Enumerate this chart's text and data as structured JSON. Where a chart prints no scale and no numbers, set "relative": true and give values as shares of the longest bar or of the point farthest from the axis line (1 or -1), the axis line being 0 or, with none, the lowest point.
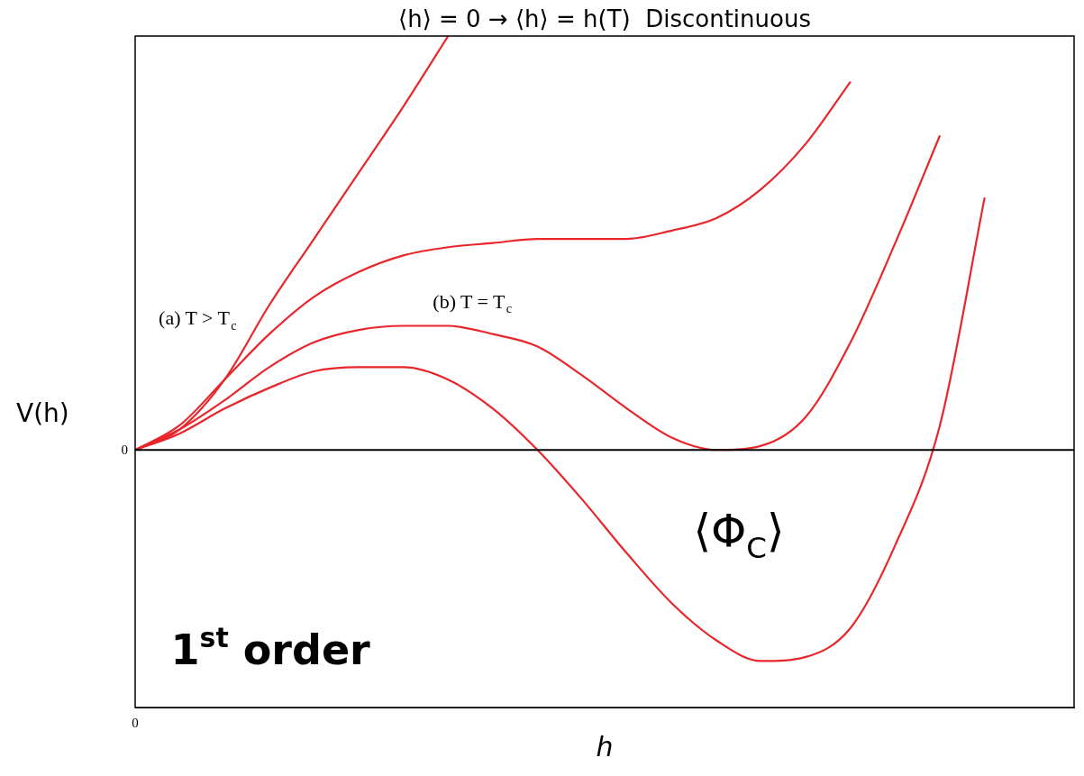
{
  "chart_data": {
    "type": "line",
    "title": "⟨h⟩ = 0 → ⟨h⟩ = h(T)  Discontinuous",
    "xlabel": "h",
    "ylabel": "V(h)",
    "relative": true,
    "marker": "none",
    "line_style": "solid",
    "categories": [
      null,
      null,
      null,
      null,
      null,
      null,
      null,
      null,
      null,
      null,
      null,
      null,
      null,
      null,
      null,
      null,
      null,
      null,
      null,
      null,
      null,
      null
    ],
    "series": [
      {
        "color": "#e8262b",
        "values": [
          0,
          0.05,
          0.17,
          0.35,
          0.51,
          0.67,
          0.83,
          1,
          null,
          null,
          null,
          null,
          null,
          null,
          null,
          null,
          null,
          null,
          null,
          null,
          null,
          null
        ]
      },
      {
        "color": "#e8262b",
        "values": [
          0,
          0.06,
          0.17,
          0.28,
          0.37,
          0.43,
          0.47,
          0.49,
          0.5,
          0.51,
          0.51,
          0.51,
          0.53,
          0.56,
          0.63,
          0.74,
          0.89,
          null,
          null,
          null,
          null,
          null
        ]
      },
      {
        "color": "#e8262b",
        "values": [
          0,
          0.05,
          0.12,
          0.2,
          0.26,
          0.29,
          0.3,
          0.3,
          0.28,
          0.25,
          0.18,
          0.1,
          0.03,
          0,
          0.01,
          0.08,
          0.26,
          0.5,
          0.76,
          null,
          null,
          null
        ]
      },
      {
        "color": "#e8262b",
        "values": [
          0,
          0.04,
          0.1,
          0.15,
          0.19,
          0.2,
          0.2,
          0.17,
          0.1,
          0,
          -0.12,
          -0.25,
          -0.37,
          -0.46,
          -0.51,
          -0.5,
          -0.43,
          -0.23,
          0.06,
          0.61,
          null,
          null
        ]
      }
    ],
    "annotations": [
      "(a) T > T$_{c}$",
      "(b) T = T$_{c}$",
      "⟨Φ$_{C}$⟩",
      "0",
      "0",
      "1$^{st}$ order"
    ]
  }
}
